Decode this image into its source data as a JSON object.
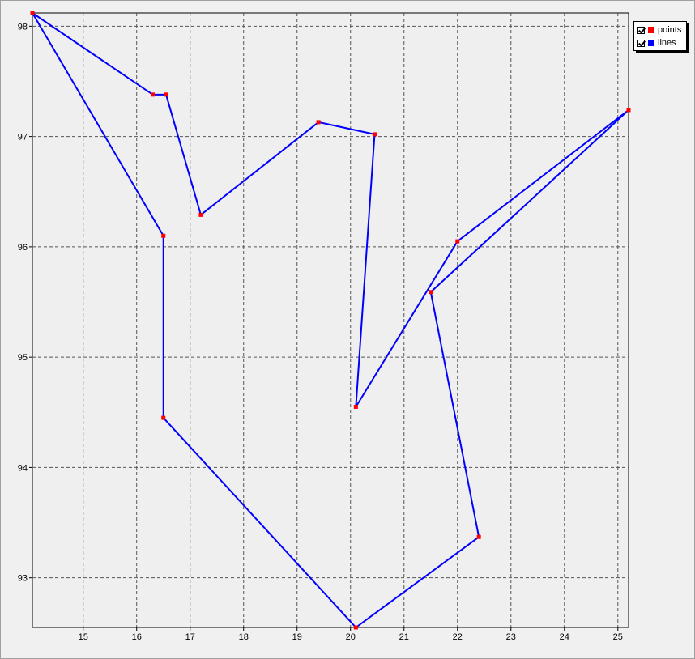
{
  "chart_data": {
    "type": "line",
    "title": "",
    "xlabel": "",
    "ylabel": "",
    "xlim": [
      14.05,
      25.2
    ],
    "ylim": [
      92.55,
      98.12
    ],
    "x_ticks": [
      "15",
      "16",
      "17",
      "18",
      "19",
      "20",
      "21",
      "22",
      "23",
      "24",
      "25"
    ],
    "y_ticks": [
      "93",
      "94",
      "95",
      "96",
      "97",
      "98"
    ],
    "grid": true,
    "legend_position": "top-right",
    "legend": [
      {
        "name": "points",
        "checked": true,
        "color": "#ff0000"
      },
      {
        "name": "lines",
        "checked": true,
        "color": "#0000ff"
      }
    ],
    "series": [
      {
        "name": "points",
        "color": "#ff0000",
        "x": [
          14.05,
          16.3,
          16.55,
          17.2,
          19.4,
          20.45,
          20.1,
          22.0,
          25.2,
          21.5,
          22.4,
          20.1,
          16.5,
          16.5
        ],
        "y": [
          98.12,
          97.38,
          97.38,
          96.29,
          97.13,
          97.02,
          94.55,
          96.05,
          97.24,
          95.59,
          93.37,
          92.55,
          94.45,
          96.1
        ]
      },
      {
        "name": "lines",
        "color": "#0000ff",
        "x": [
          14.05,
          16.3,
          16.55,
          17.2,
          19.4,
          20.45,
          20.1,
          22.0,
          25.2,
          21.5,
          22.4,
          20.1,
          16.5,
          16.5,
          14.05
        ],
        "y": [
          98.12,
          97.38,
          97.38,
          96.29,
          97.13,
          97.02,
          94.55,
          96.05,
          97.24,
          95.59,
          93.37,
          92.55,
          94.45,
          96.1,
          98.12
        ]
      }
    ]
  }
}
